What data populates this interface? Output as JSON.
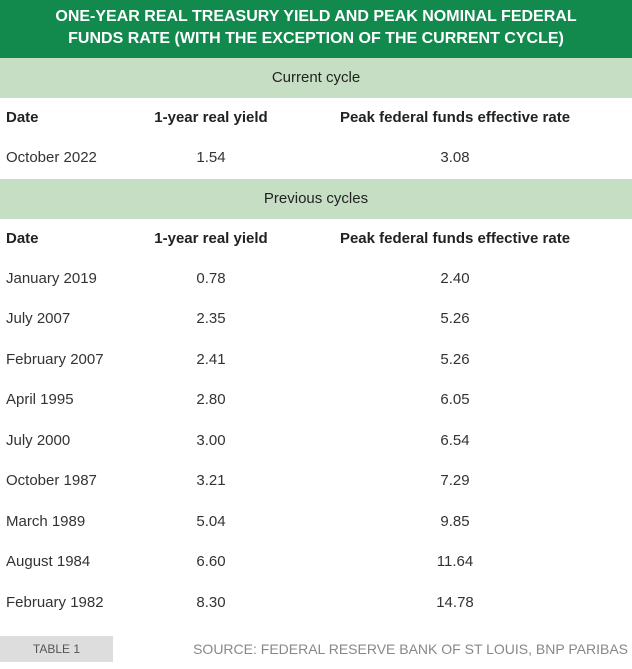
{
  "header": {
    "title_lines": [
      "ONE-YEAR REAL TREASURY YIELD AND PEAK NOMINAL FEDERAL",
      "FUNDS RATE (WITH THE EXCEPTION OF THE CURRENT CYCLE)"
    ]
  },
  "sections": [
    {
      "title": "Current cycle",
      "columns": [
        "Date",
        "1-year real yield",
        "Peak federal funds effective rate"
      ],
      "rows": [
        [
          "October 2022",
          "1.54",
          "3.08"
        ]
      ]
    },
    {
      "title": "Previous cycles",
      "columns": [
        "Date",
        "1-year real yield",
        "Peak federal funds effective rate"
      ],
      "rows": [
        [
          "January 2019",
          "0.78",
          "2.40"
        ],
        [
          "July 2007",
          "2.35",
          "5.26"
        ],
        [
          "February 2007",
          "2.41",
          "5.26"
        ],
        [
          "April 1995",
          "2.80",
          "6.05"
        ],
        [
          "July 2000",
          "3.00",
          "6.54"
        ],
        [
          "October 1987",
          "3.21",
          "7.29"
        ],
        [
          "March 1989",
          "5.04",
          "9.85"
        ],
        [
          "August 1984",
          "6.60",
          "11.64"
        ],
        [
          "February 1982",
          "8.30",
          "14.78"
        ]
      ]
    }
  ],
  "footer": {
    "label": "TABLE 1",
    "source": "SOURCE: FEDERAL RESERVE BANK OF ST LOUIS, BNP PARIBAS"
  }
}
